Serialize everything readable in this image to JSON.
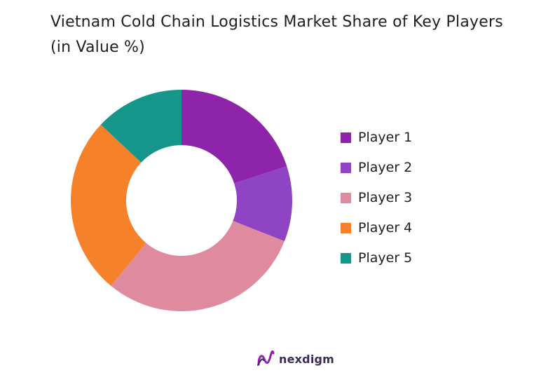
{
  "chart_data": {
    "type": "pie",
    "variant": "donut",
    "title": "Vietnam Cold Chain Logistics Market Share of Key Players (in Value %)",
    "categories": [
      "Player 1",
      "Player 2",
      "Player 3",
      "Player 4",
      "Player 5"
    ],
    "values": [
      20,
      11,
      30,
      26,
      13
    ],
    "colors": [
      "#8e24aa",
      "#8e44c3",
      "#e08aa0",
      "#f5822a",
      "#16968a"
    ],
    "legend_position": "right"
  },
  "brand": {
    "name": "nexdigm",
    "color": "#3a2a55"
  }
}
